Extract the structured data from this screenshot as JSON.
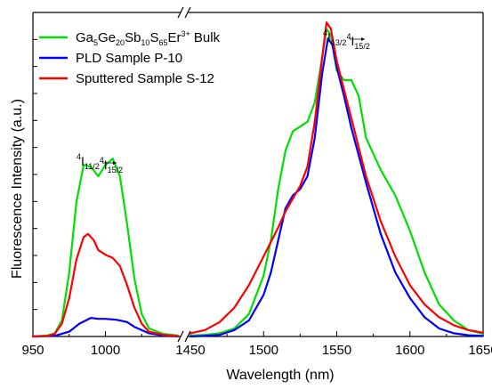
{
  "chart_data": {
    "type": "line",
    "xlabel": "Wavelength (nm)",
    "ylabel": "Fluorescence Intensity (a.u.)",
    "x_segments": [
      {
        "range": [
          950,
          1050
        ],
        "ticks": [
          950,
          1000
        ]
      },
      {
        "range": [
          1450,
          1650
        ],
        "ticks": [
          1450,
          1500,
          1550,
          1600,
          1650
        ]
      }
    ],
    "axis_break": "//",
    "ylim": [
      0,
      1.0
    ],
    "y_ticks_labeled": false,
    "legend_position": "top-left",
    "legend": {
      "bulk": {
        "base": "Ga",
        "parts": [
          {
            "t": "5",
            "s": "sub"
          },
          {
            "t": "Ge",
            "s": ""
          },
          {
            "t": "20",
            "s": "sub"
          },
          {
            "t": "Sb",
            "s": ""
          },
          {
            "t": "10",
            "s": "sub"
          },
          {
            "t": "S",
            "s": ""
          },
          {
            "t": "65",
            "s": "sub"
          },
          {
            "t": "Er",
            "s": ""
          },
          {
            "t": "3+",
            "s": "sup"
          },
          {
            "t": " Bulk",
            "s": ""
          }
        ]
      },
      "pld": "PLD Sample P-10",
      "sputtered": "Sputtered Sample S-12"
    },
    "annotations": {
      "left": {
        "a_sup": "4",
        "a_main": "I",
        "a_sub": "11/2",
        "b_sup": "4",
        "b_main": "I",
        "b_sub": "15/2"
      },
      "right": {
        "a_sup": "4",
        "a_main": "I",
        "a_sub": "13/2",
        "b_sup": "4",
        "b_main": "I",
        "b_sub": "15/2"
      }
    },
    "series": [
      {
        "key": "bulk",
        "color": "#00e000",
        "points": [
          [
            950,
            0.0
          ],
          [
            960,
            0.003
          ],
          [
            965,
            0.01
          ],
          [
            970,
            0.05
          ],
          [
            975,
            0.2
          ],
          [
            980,
            0.42
          ],
          [
            985,
            0.535
          ],
          [
            990,
            0.53
          ],
          [
            995,
            0.5
          ],
          [
            1000,
            0.535
          ],
          [
            1005,
            0.555
          ],
          [
            1010,
            0.5
          ],
          [
            1015,
            0.35
          ],
          [
            1020,
            0.18
          ],
          [
            1025,
            0.07
          ],
          [
            1030,
            0.025
          ],
          [
            1040,
            0.008
          ],
          [
            1050,
            0.003
          ],
          [
            1450,
            0.003
          ],
          [
            1460,
            0.005
          ],
          [
            1470,
            0.01
          ],
          [
            1480,
            0.025
          ],
          [
            1490,
            0.07
          ],
          [
            1500,
            0.19
          ],
          [
            1505,
            0.3
          ],
          [
            1510,
            0.46
          ],
          [
            1515,
            0.58
          ],
          [
            1520,
            0.64
          ],
          [
            1525,
            0.655
          ],
          [
            1530,
            0.67
          ],
          [
            1535,
            0.73
          ],
          [
            1540,
            0.87
          ],
          [
            1543,
            0.96
          ],
          [
            1546,
            0.94
          ],
          [
            1550,
            0.83
          ],
          [
            1555,
            0.8
          ],
          [
            1560,
            0.8
          ],
          [
            1565,
            0.75
          ],
          [
            1570,
            0.62
          ],
          [
            1580,
            0.52
          ],
          [
            1590,
            0.44
          ],
          [
            1600,
            0.33
          ],
          [
            1610,
            0.2
          ],
          [
            1620,
            0.1
          ],
          [
            1630,
            0.05
          ],
          [
            1640,
            0.02
          ],
          [
            1650,
            0.008
          ]
        ]
      },
      {
        "key": "pld",
        "color": "#0000ff",
        "points": [
          [
            950,
            0.0
          ],
          [
            965,
            0.002
          ],
          [
            975,
            0.015
          ],
          [
            982,
            0.04
          ],
          [
            990,
            0.058
          ],
          [
            995,
            0.055
          ],
          [
            1000,
            0.055
          ],
          [
            1008,
            0.052
          ],
          [
            1015,
            0.045
          ],
          [
            1020,
            0.03
          ],
          [
            1030,
            0.01
          ],
          [
            1040,
            0.003
          ],
          [
            1050,
            0.0
          ],
          [
            1450,
            0.0
          ],
          [
            1460,
            0.002
          ],
          [
            1470,
            0.005
          ],
          [
            1480,
            0.02
          ],
          [
            1490,
            0.05
          ],
          [
            1500,
            0.13
          ],
          [
            1505,
            0.2
          ],
          [
            1510,
            0.3
          ],
          [
            1515,
            0.4
          ],
          [
            1520,
            0.44
          ],
          [
            1525,
            0.46
          ],
          [
            1530,
            0.5
          ],
          [
            1535,
            0.62
          ],
          [
            1540,
            0.82
          ],
          [
            1544,
            0.93
          ],
          [
            1547,
            0.91
          ],
          [
            1550,
            0.84
          ],
          [
            1555,
            0.75
          ],
          [
            1560,
            0.65
          ],
          [
            1570,
            0.48
          ],
          [
            1580,
            0.32
          ],
          [
            1590,
            0.2
          ],
          [
            1600,
            0.12
          ],
          [
            1610,
            0.06
          ],
          [
            1620,
            0.025
          ],
          [
            1630,
            0.01
          ],
          [
            1640,
            0.004
          ],
          [
            1650,
            0.002
          ]
        ]
      },
      {
        "key": "sputtered",
        "color": "#ff0000",
        "points": [
          [
            950,
            0.0
          ],
          [
            960,
            0.002
          ],
          [
            965,
            0.008
          ],
          [
            970,
            0.04
          ],
          [
            975,
            0.12
          ],
          [
            980,
            0.24
          ],
          [
            985,
            0.31
          ],
          [
            988,
            0.32
          ],
          [
            992,
            0.3
          ],
          [
            995,
            0.27
          ],
          [
            1000,
            0.255
          ],
          [
            1005,
            0.245
          ],
          [
            1010,
            0.22
          ],
          [
            1015,
            0.16
          ],
          [
            1020,
            0.09
          ],
          [
            1025,
            0.04
          ],
          [
            1030,
            0.015
          ],
          [
            1040,
            0.005
          ],
          [
            1050,
            0.001
          ],
          [
            1450,
            0.01
          ],
          [
            1460,
            0.02
          ],
          [
            1470,
            0.045
          ],
          [
            1480,
            0.09
          ],
          [
            1490,
            0.16
          ],
          [
            1500,
            0.25
          ],
          [
            1510,
            0.34
          ],
          [
            1515,
            0.39
          ],
          [
            1520,
            0.43
          ],
          [
            1525,
            0.47
          ],
          [
            1530,
            0.53
          ],
          [
            1535,
            0.67
          ],
          [
            1540,
            0.87
          ],
          [
            1543,
            0.98
          ],
          [
            1546,
            0.96
          ],
          [
            1550,
            0.86
          ],
          [
            1555,
            0.77
          ],
          [
            1560,
            0.68
          ],
          [
            1570,
            0.5
          ],
          [
            1580,
            0.36
          ],
          [
            1590,
            0.25
          ],
          [
            1600,
            0.16
          ],
          [
            1610,
            0.1
          ],
          [
            1620,
            0.06
          ],
          [
            1630,
            0.035
          ],
          [
            1640,
            0.02
          ],
          [
            1650,
            0.012
          ]
        ]
      }
    ]
  }
}
